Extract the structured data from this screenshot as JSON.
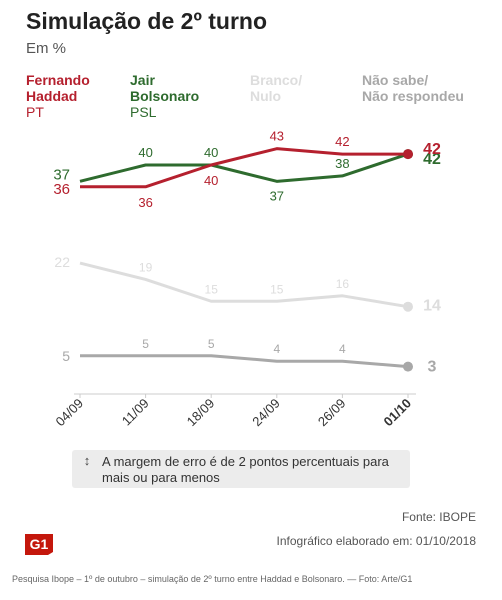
{
  "header": {
    "title": "Simulação de 2º turno",
    "subtitle": "Em %"
  },
  "legend": [
    {
      "name": "Fernando\nHaddad",
      "party": "PT",
      "color": "#b5202e"
    },
    {
      "name": "Jair\nBolsonaro",
      "party": "PSL",
      "color": "#2e6b2e"
    },
    {
      "name": "Branco/\nNulo",
      "party": "",
      "color": "#dddddd"
    },
    {
      "name": "Não sabe/\nNão respondeu",
      "party": "",
      "color": "#a8a8a8"
    }
  ],
  "chart_data": {
    "type": "line",
    "categories": [
      "04/09",
      "11/09",
      "18/09",
      "24/09",
      "26/09",
      "01/10"
    ],
    "ylim": [
      0,
      50
    ],
    "grid": false,
    "series": [
      {
        "name": "Fernando Haddad",
        "color": "#b5202e",
        "values": [
          36,
          36,
          40,
          43,
          42,
          42
        ],
        "labels": [
          "36",
          "36",
          "40",
          "43",
          "42",
          "42"
        ]
      },
      {
        "name": "Jair Bolsonaro",
        "color": "#2e6b2e",
        "values": [
          37,
          40,
          40,
          37,
          38,
          42
        ],
        "labels": [
          "37",
          "40",
          "40",
          "37",
          "38",
          "42"
        ]
      },
      {
        "name": "Branco/Nulo",
        "color": "#dddddd",
        "values": [
          22,
          19,
          15,
          15,
          16,
          14
        ],
        "labels": [
          "22",
          "19",
          "15",
          "15",
          "16",
          "14"
        ]
      },
      {
        "name": "Não sabe/Não respondeu",
        "color": "#a8a8a8",
        "values": [
          5,
          5,
          5,
          4,
          4,
          3
        ],
        "labels": [
          "5",
          "5",
          "5",
          "4",
          "4",
          "3"
        ]
      }
    ]
  },
  "note": {
    "arrow_icon": "↕",
    "text": "A margem de erro é de 2 pontos percentuais para mais ou para menos"
  },
  "footer": {
    "source": "Fonte: IBOPE",
    "logo": "G1",
    "credit": "Infográfico elaborado em: 01/10/2018",
    "caption": "Pesquisa Ibope – 1º de outubro – simulação de 2º turno entre Haddad e Bolsonaro. — Foto: Arte/G1"
  }
}
